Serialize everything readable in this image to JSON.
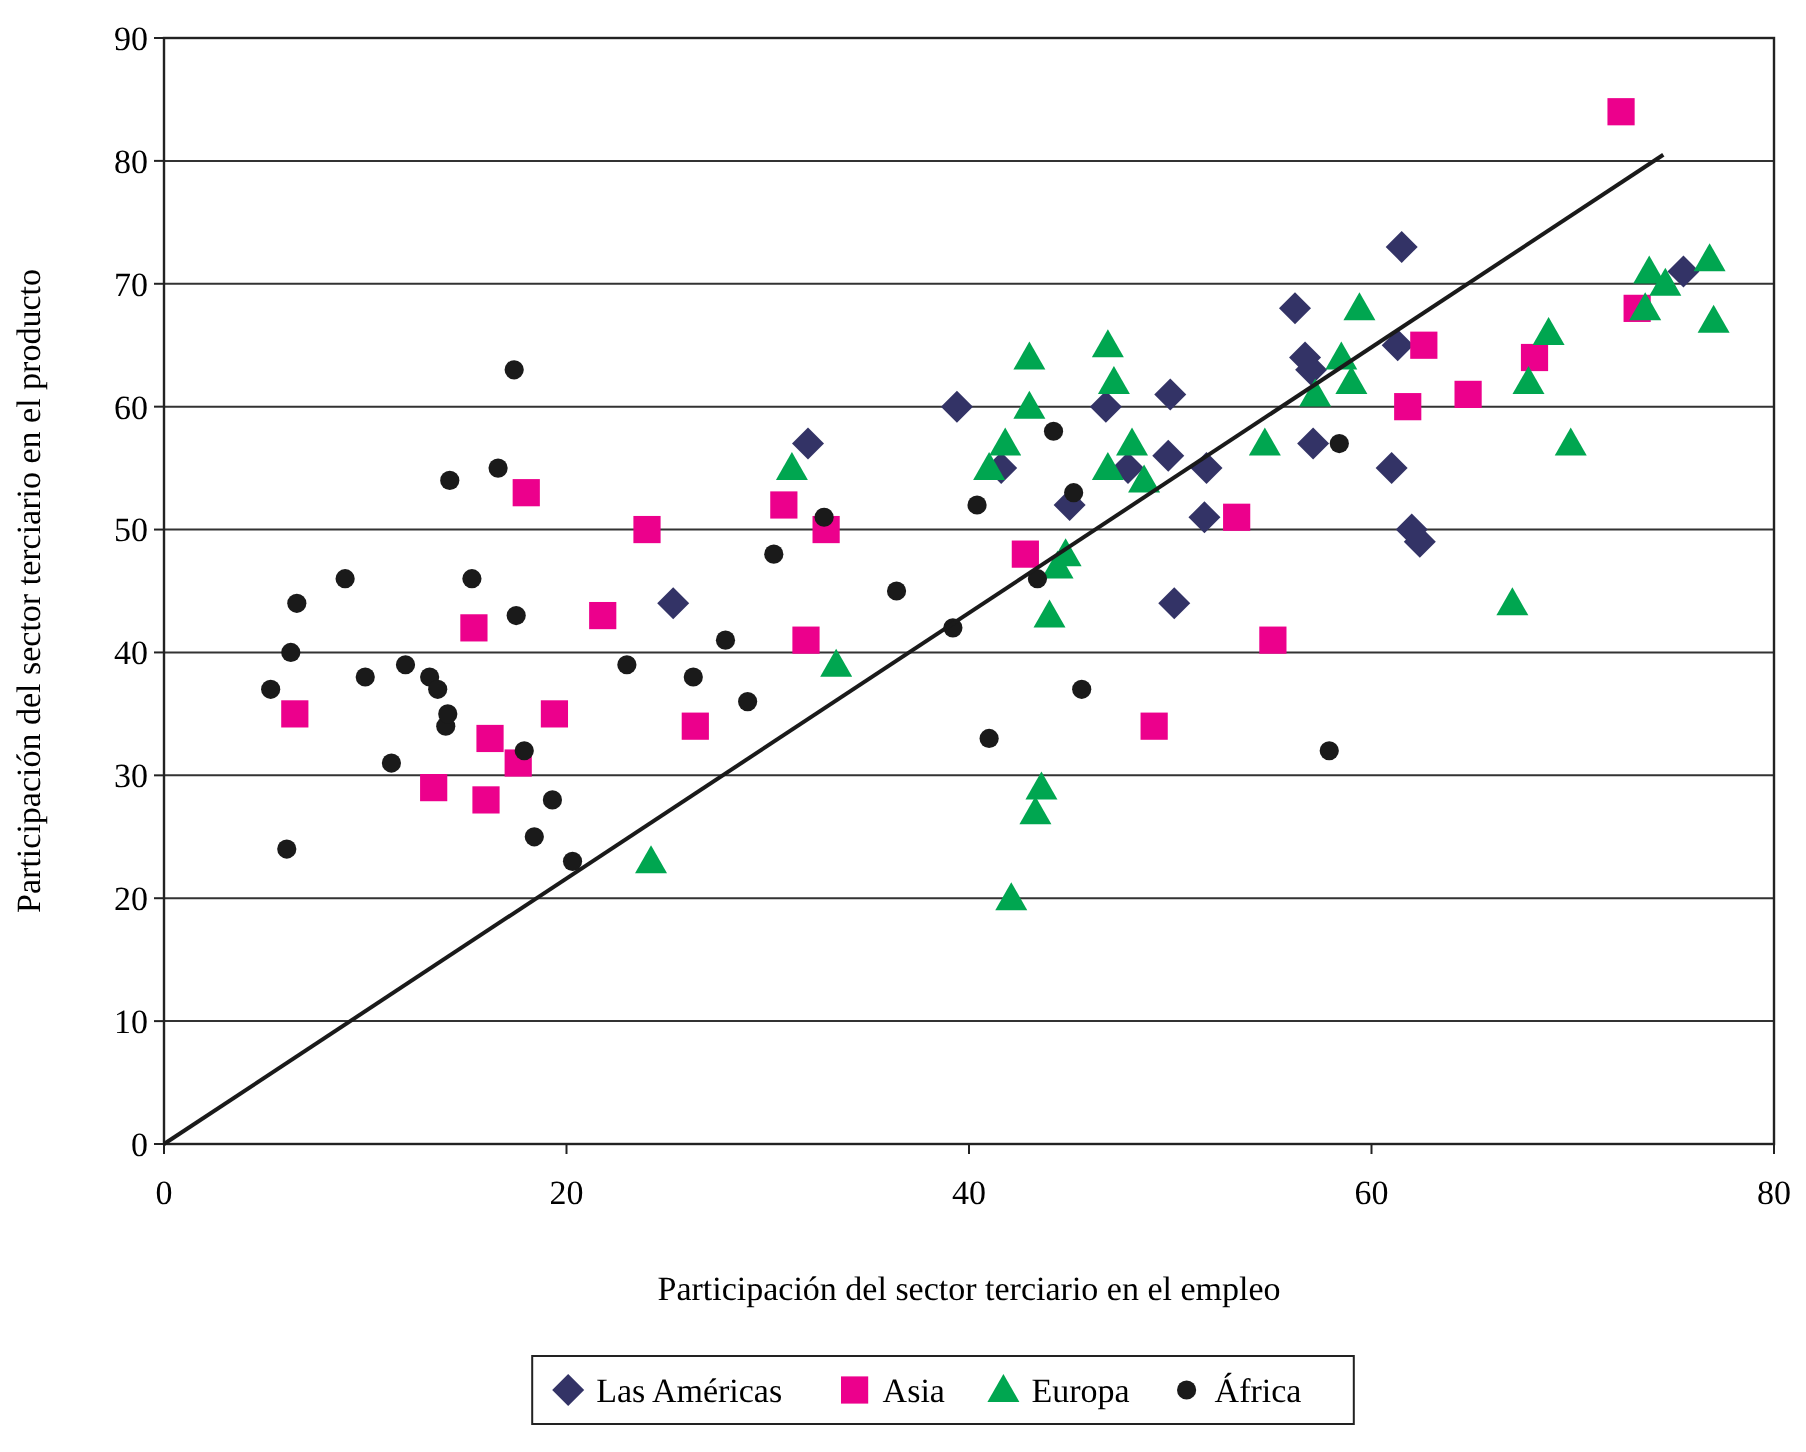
{
  "chart_data": {
    "type": "scatter",
    "xlabel": "Participación del sector terciario en el empleo",
    "ylabel": "Participación del sector terciario en el producto",
    "xlim": [
      0,
      80
    ],
    "ylim": [
      0,
      90
    ],
    "xticks": [
      0,
      20,
      40,
      60,
      80
    ],
    "yticks": [
      0,
      10,
      20,
      30,
      40,
      50,
      60,
      70,
      80,
      90
    ],
    "grid": "y",
    "legend": "bottom",
    "series": [
      {
        "name": "Las Américas",
        "color": "#333366",
        "marker": "diamond",
        "x": [
          25.3,
          32,
          39.4,
          41.6,
          45,
          46.8,
          47.9,
          49.9,
          50,
          50.2,
          51.7,
          51.8,
          56.2,
          56.7,
          57,
          57.1,
          61,
          61.3,
          61.5,
          62,
          62.4,
          75.5
        ],
        "values": [
          44,
          57,
          60,
          55,
          52,
          60,
          55,
          56,
          61,
          44,
          51,
          55,
          68,
          64,
          63,
          57,
          55,
          65,
          73,
          50,
          49,
          71
        ]
      },
      {
        "name": "Asia",
        "color": "#ec008c",
        "marker": "square",
        "x": [
          6.5,
          13.4,
          15.4,
          16,
          16.2,
          17.6,
          18,
          19.4,
          21.8,
          24,
          26.4,
          30.8,
          31.9,
          32.9,
          42.8,
          49.2,
          53.3,
          55.1,
          61.8,
          62.6,
          64.8,
          68.1,
          72.4,
          73.2
        ],
        "values": [
          35,
          29,
          42,
          28,
          33,
          31,
          53,
          35,
          43,
          50,
          34,
          52,
          41,
          50,
          48,
          34,
          51,
          41,
          60,
          65,
          61,
          64,
          84,
          68
        ]
      },
      {
        "name": "Europa",
        "color": "#00a650",
        "marker": "triangle",
        "x": [
          24.2,
          31.2,
          33.4,
          41,
          41.8,
          42.1,
          43,
          43,
          43.3,
          43.6,
          44,
          44.4,
          44.8,
          46.9,
          47.2,
          46.9,
          48.1,
          48.7,
          54.7,
          57.2,
          58.5,
          59,
          59.4,
          67,
          67.8,
          68.8,
          69.9,
          73.6,
          73.8,
          74.6,
          76.8,
          77
        ],
        "values": [
          23,
          55,
          39,
          55,
          57,
          20,
          64,
          60,
          27,
          29,
          43,
          47,
          48,
          65,
          62,
          55,
          57,
          54,
          57,
          61,
          64,
          62,
          68,
          44,
          62,
          66,
          57,
          68,
          71,
          70,
          72,
          67
        ]
      },
      {
        "name": "África",
        "color": "#1a1a1a",
        "marker": "circle",
        "x": [
          5.3,
          6.1,
          6.3,
          6.6,
          9,
          10,
          11.3,
          12,
          13.2,
          13.6,
          14,
          14.1,
          14.2,
          15.3,
          16.6,
          17.4,
          17.5,
          17.9,
          18.4,
          19.3,
          20.3,
          23,
          26.3,
          27.9,
          29,
          30.3,
          32.8,
          36.4,
          39.2,
          40.4,
          43.4,
          44.2,
          45.2,
          45.6,
          41,
          58.4,
          57.9
        ],
        "values": [
          37,
          24,
          40,
          44,
          46,
          38,
          31,
          39,
          38,
          37,
          34,
          35,
          54,
          46,
          55,
          63,
          43,
          32,
          25,
          28,
          23,
          39,
          38,
          41,
          36,
          48,
          51,
          45,
          42,
          52,
          46,
          58,
          53,
          37,
          33,
          57,
          32
        ]
      },
      {
        "type": "line",
        "color": "#1a1a1a",
        "marker": "none",
        "x": [
          0,
          74.5
        ],
        "values": [
          0,
          80.5
        ]
      }
    ]
  }
}
